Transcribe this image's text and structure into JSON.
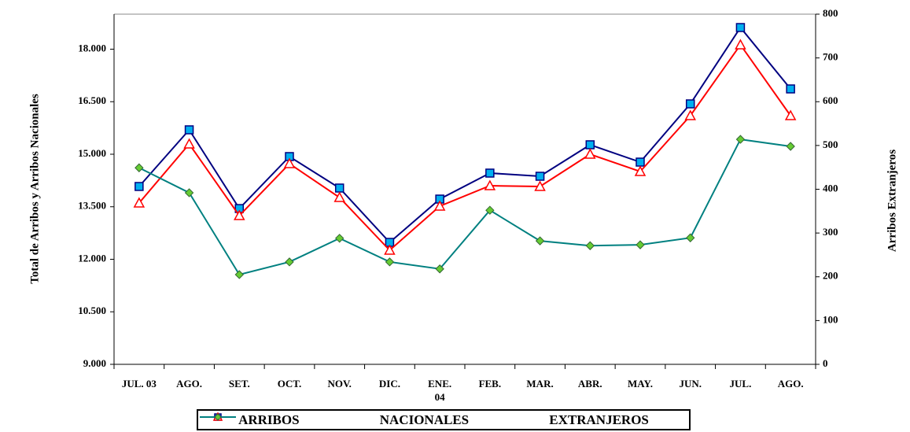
{
  "chart_data": {
    "type": "line",
    "ylabel": "Total de Arribos y Arribos Nacionales",
    "y2label": "Arribos Extranjeros",
    "categories": [
      "JUL. 03",
      "AGO.",
      "SET.",
      "OCT.",
      "NOV.",
      "DIC.",
      "ENE.\n04",
      "FEB.",
      "MAR.",
      "ABR.",
      "MAY.",
      "JUN.",
      "JUL.",
      "AGO."
    ],
    "ylim": [
      9000,
      19000
    ],
    "yticks": [
      {
        "value": 9000,
        "label": "9.000"
      },
      {
        "value": 10500,
        "label": "10.500"
      },
      {
        "value": 12000,
        "label": "12.000"
      },
      {
        "value": 13500,
        "label": "13.500"
      },
      {
        "value": 15000,
        "label": "15.000"
      },
      {
        "value": 16500,
        "label": "16.500"
      },
      {
        "value": 18000,
        "label": "18.000"
      }
    ],
    "y2lim": [
      0,
      800
    ],
    "y2ticks": [
      0,
      100,
      200,
      300,
      400,
      500,
      600,
      700,
      800
    ],
    "series": [
      {
        "name": "ARRIBOS",
        "color": "#000080",
        "marker": "square",
        "marker_color": "#00b0f0",
        "values": [
          14079,
          15697,
          13449,
          14933,
          14034,
          12483,
          13719,
          14461,
          14371,
          15270,
          14775,
          16438,
          18618,
          16865
        ]
      },
      {
        "name": "NACIONALES",
        "color": "#ff0000",
        "marker": "triangle",
        "marker_color": "#ffffff",
        "values": [
          13607,
          15292,
          13247,
          14730,
          13764,
          12258,
          13517,
          14101,
          14079,
          15000,
          14506,
          16101,
          18124,
          16101
        ]
      },
      {
        "name": "EXTRANJEROS",
        "color": "#008080",
        "marker": "diamond",
        "marker_color": "#66cc33",
        "axis": "y2",
        "values": [
          449,
          392,
          205,
          234,
          288,
          234,
          218,
          352,
          282,
          271,
          273,
          289,
          514,
          498
        ]
      }
    ]
  }
}
